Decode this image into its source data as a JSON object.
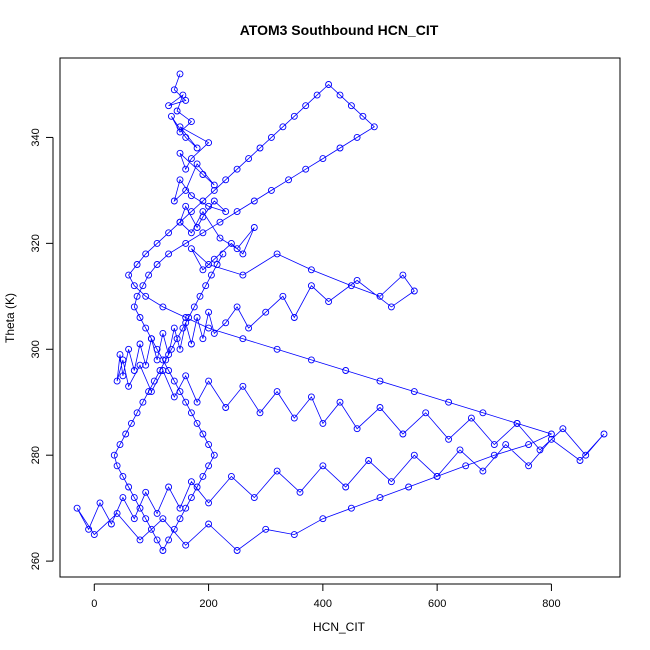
{
  "chart_data": {
    "type": "line",
    "title": "ATOM3 Southbound HCN_CIT",
    "xlabel": "HCN_CIT",
    "ylabel": "Theta (K)",
    "xlim": [
      -60,
      920
    ],
    "ylim": [
      257,
      355
    ],
    "x_ticks": [
      0,
      200,
      400,
      600,
      800
    ],
    "y_ticks": [
      260,
      280,
      300,
      320,
      340
    ],
    "grid": false,
    "legend": "none",
    "series_color": "#0000ff",
    "markers": "open-circle",
    "series": [
      {
        "x": [
          150,
          140,
          160,
          130,
          155,
          145,
          170,
          150,
          135,
          160,
          180,
          150,
          200,
          170,
          160,
          150,
          190,
          210,
          180,
          160,
          140,
          150,
          170,
          200,
          230,
          210,
          190,
          180,
          160,
          150,
          170,
          190,
          220,
          250,
          280,
          260,
          240,
          210,
          190,
          170,
          200,
          260,
          320,
          380,
          450,
          500,
          540,
          560,
          520,
          460,
          410,
          380,
          350,
          330,
          300,
          270,
          250,
          230,
          210,
          200,
          190,
          180,
          170,
          160,
          150,
          140,
          130,
          120,
          110,
          100,
          90,
          80,
          70,
          60,
          50,
          45,
          40,
          50,
          60,
          80,
          100,
          120,
          140,
          160,
          180,
          200,
          230,
          260,
          290,
          320,
          350,
          380,
          400,
          430,
          460,
          500,
          540,
          580,
          620,
          660,
          700,
          740,
          780,
          820,
          860,
          892,
          850,
          800,
          760,
          720,
          680,
          640,
          600,
          560,
          520,
          480,
          440,
          400,
          360,
          320,
          280,
          240,
          200,
          170,
          150,
          130,
          110,
          90,
          70,
          50,
          30,
          10,
          -10,
          -30,
          0,
          40,
          80,
          120,
          160,
          200,
          250,
          300,
          350,
          400,
          450,
          500,
          550,
          600,
          650,
          700,
          760,
          800,
          740,
          680,
          620,
          560,
          500,
          440,
          380,
          320,
          260,
          200,
          160,
          120,
          90,
          70,
          60,
          75,
          90,
          110,
          130,
          150,
          170,
          190,
          210,
          230,
          250,
          270,
          290,
          310,
          330,
          350,
          370,
          390,
          410,
          430,
          450,
          470,
          490,
          460,
          430,
          400,
          370,
          340,
          310,
          280,
          250,
          220,
          190,
          160,
          130,
          110,
          95,
          85,
          75,
          70,
          80,
          90,
          100,
          110,
          120,
          130,
          140,
          150,
          160,
          170,
          180,
          190,
          200,
          210,
          200,
          190,
          180,
          170,
          160,
          150,
          140,
          130,
          120,
          110,
          100,
          90,
          80,
          70,
          60,
          50,
          40,
          35,
          45,
          55,
          65,
          75,
          85,
          95,
          105,
          115,
          125,
          135,
          145,
          155,
          165,
          175,
          185,
          195,
          205,
          215,
          225
        ],
        "y": [
          352,
          349,
          347,
          346,
          348,
          345,
          343,
          341,
          344,
          340,
          338,
          342,
          339,
          336,
          334,
          337,
          333,
          331,
          335,
          330,
          328,
          332,
          329,
          327,
          326,
          328,
          325,
          323,
          327,
          324,
          322,
          326,
          321,
          319,
          323,
          318,
          320,
          317,
          315,
          319,
          316,
          314,
          318,
          315,
          312,
          310,
          314,
          311,
          308,
          313,
          309,
          312,
          306,
          310,
          307,
          304,
          308,
          305,
          303,
          307,
          302,
          306,
          301,
          305,
          300,
          304,
          299,
          303,
          298,
          302,
          297,
          301,
          296,
          300,
          295,
          299,
          294,
          298,
          293,
          297,
          292,
          296,
          291,
          295,
          290,
          294,
          289,
          293,
          288,
          292,
          287,
          291,
          286,
          290,
          285,
          289,
          284,
          288,
          283,
          287,
          282,
          286,
          281,
          285,
          280,
          284,
          279,
          283,
          278,
          282,
          277,
          281,
          276,
          280,
          275,
          279,
          274,
          278,
          273,
          277,
          272,
          276,
          271,
          275,
          270,
          274,
          269,
          273,
          268,
          272,
          267,
          271,
          266,
          270,
          265,
          269,
          264,
          268,
          263,
          267,
          262,
          266,
          265,
          268,
          270,
          272,
          274,
          276,
          278,
          280,
          282,
          284,
          286,
          288,
          290,
          292,
          294,
          296,
          298,
          300,
          302,
          304,
          306,
          308,
          310,
          312,
          314,
          316,
          318,
          320,
          322,
          324,
          326,
          328,
          330,
          332,
          334,
          336,
          338,
          340,
          342,
          344,
          346,
          348,
          350,
          348,
          346,
          344,
          342,
          340,
          338,
          336,
          334,
          332,
          330,
          328,
          326,
          324,
          322,
          320,
          318,
          316,
          314,
          312,
          310,
          308,
          306,
          304,
          302,
          300,
          298,
          296,
          294,
          292,
          290,
          288,
          286,
          284,
          282,
          280,
          278,
          276,
          274,
          272,
          270,
          268,
          266,
          264,
          262,
          264,
          266,
          268,
          270,
          272,
          274,
          276,
          278,
          280,
          282,
          284,
          286,
          288,
          290,
          292,
          294,
          296,
          298,
          300,
          302,
          304,
          306,
          308,
          310,
          312,
          314,
          316,
          318
        ]
      }
    ]
  }
}
